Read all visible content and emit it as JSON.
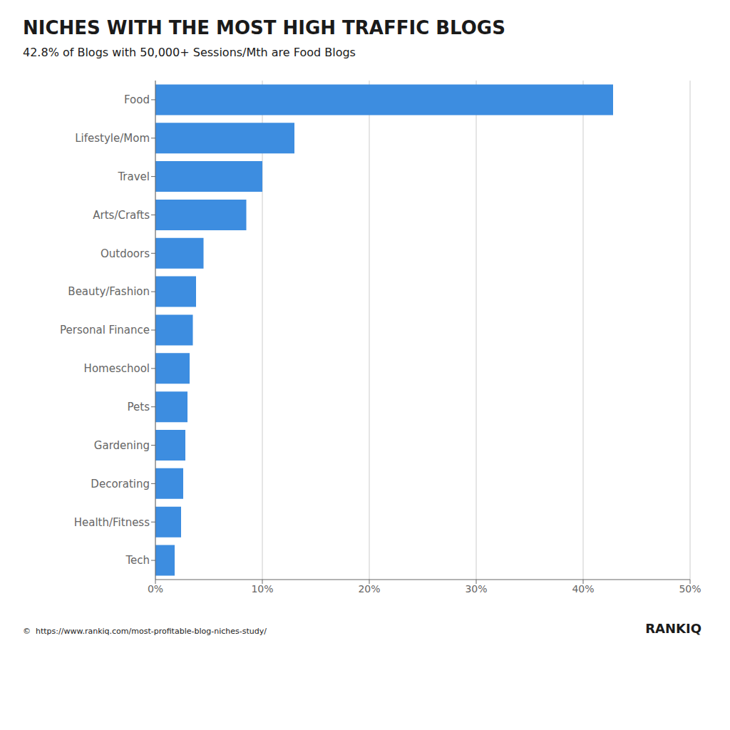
{
  "chart_data": {
    "type": "bar",
    "title": "NICHES WITH THE MOST HIGH TRAFFIC BLOGS",
    "subtitle": "42.8% of Blogs with 50,000+ Sessions/Mth are Food Blogs",
    "categories": [
      "Food",
      "Lifestyle/Mom",
      "Travel",
      "Arts/Crafts",
      "Outdoors",
      "Beauty/Fashion",
      "Personal Finance",
      "Homeschool",
      "Pets",
      "Gardening",
      "Decorating",
      "Health/Fitness",
      "Tech"
    ],
    "values": [
      42.8,
      13.0,
      10.0,
      8.5,
      4.5,
      3.8,
      3.5,
      3.2,
      3.0,
      2.8,
      2.6,
      2.4,
      1.8
    ],
    "color": "#3d8de0",
    "orientation": "horizontal",
    "xlim": [
      0,
      50
    ],
    "xticks": [
      {
        "value": 0,
        "label": "0%"
      },
      {
        "value": 10,
        "label": "10%"
      },
      {
        "value": 20,
        "label": "20%"
      },
      {
        "value": 30,
        "label": "30%"
      },
      {
        "value": 40,
        "label": "40%"
      },
      {
        "value": 50,
        "label": "50%"
      }
    ],
    "grid": true,
    "annotations": [
      "©  https://www.rankiq.com/most-profitable-blog-niches-study/",
      "RANKIQ"
    ]
  }
}
